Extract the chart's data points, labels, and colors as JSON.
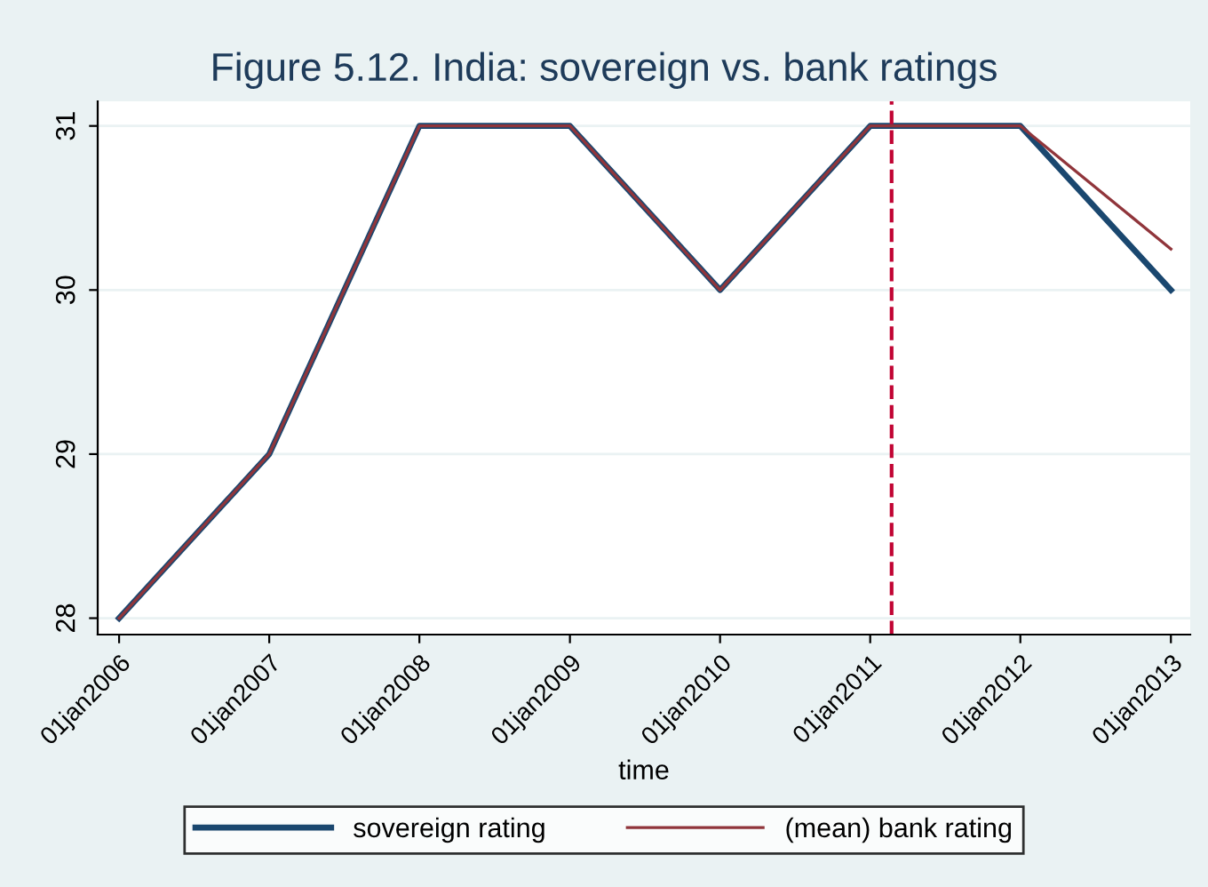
{
  "chart_data": {
    "type": "line",
    "title": "Figure 5.12. India: sovereign vs. bank ratings",
    "xlabel": "time",
    "x": [
      "2006-01-01",
      "2007-01-01",
      "2008-01-01",
      "2009-01-01",
      "2010-01-01",
      "2011-01-01",
      "2012-01-01",
      "2013-01-01"
    ],
    "series": [
      {
        "name": "sovereign rating",
        "color": "#1a476f",
        "values": [
          28,
          29,
          31,
          31,
          30,
          31,
          31,
          30
        ]
      },
      {
        "name": "(mean) bank rating",
        "color": "#90353b",
        "values": [
          28,
          29,
          31,
          31,
          30,
          31,
          31,
          30.25
        ]
      }
    ],
    "xlim": [
      "2005-11-10",
      "2013-02-17"
    ],
    "xticks": [
      {
        "value": "2006-01-01",
        "label": "01jan2006"
      },
      {
        "value": "2007-01-01",
        "label": "01jan2007"
      },
      {
        "value": "2008-01-01",
        "label": "01jan2008"
      },
      {
        "value": "2009-01-01",
        "label": "01jan2009"
      },
      {
        "value": "2010-01-01",
        "label": "01jan2010"
      },
      {
        "value": "2011-01-01",
        "label": "01jan2011"
      },
      {
        "value": "2012-01-01",
        "label": "01jan2012"
      },
      {
        "value": "2013-01-01",
        "label": "01jan2013"
      }
    ],
    "ylim": [
      27.9,
      31.15
    ],
    "yticks": [
      28,
      29,
      30,
      31
    ],
    "ref_lines": [
      {
        "axis": "x",
        "value": "2011-02-22",
        "color": "#c10534",
        "line_style": "dashed"
      }
    ],
    "grid": "y",
    "legend": "bottom",
    "marker": "none",
    "line_style": "solid"
  }
}
